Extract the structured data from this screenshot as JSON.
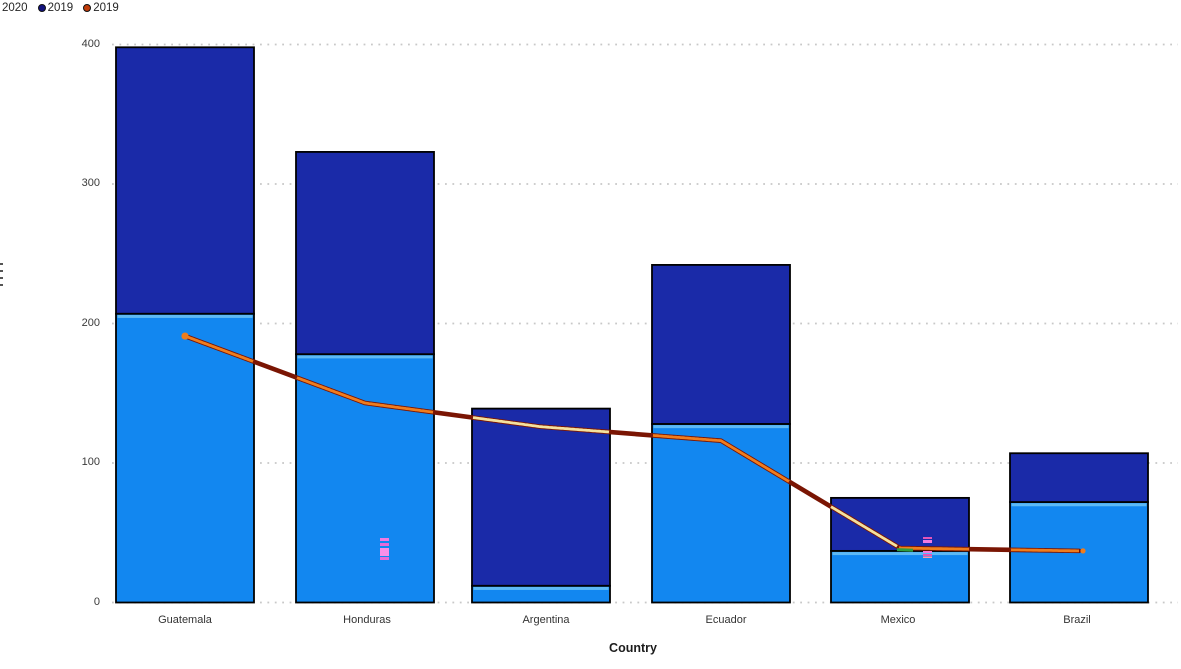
{
  "legend": {
    "items": [
      {
        "label": "2020",
        "swatch": null
      },
      {
        "label": "2019",
        "swatch": "#12127e"
      },
      {
        "label": "2019",
        "swatch": "#c03c0a"
      }
    ]
  },
  "chart_data": {
    "type": "combo-stacked-column-line",
    "categories": [
      "Guatemala",
      "Honduras",
      "Argentina",
      "Ecuador",
      "Mexico",
      "Brazil"
    ],
    "series": [
      {
        "name": "2020",
        "type": "column",
        "stack_position": "bottom",
        "color": "#1287f0",
        "values": [
          207,
          178,
          12,
          128,
          37,
          72
        ]
      },
      {
        "name": "2019",
        "type": "column",
        "stack_position": "top",
        "color": "#1a2aa8",
        "values": [
          191,
          145,
          127,
          114,
          38,
          35
        ]
      },
      {
        "name": "2019",
        "type": "line",
        "color": "#ee7d1e",
        "values": [
          191,
          143,
          126,
          116,
          39,
          37
        ]
      }
    ],
    "stack_totals": [
      398,
      323,
      139,
      242,
      75,
      107
    ],
    "xlabel": "Country",
    "ytick_labels": [
      "0",
      "100",
      "200",
      "300",
      "400"
    ],
    "yticks": [
      0,
      100,
      200,
      300,
      400
    ],
    "ylim": [
      0,
      400
    ],
    "grid": "dotted-horizontal",
    "legend_position": "top-left"
  },
  "colors": {
    "column_bottom": "#1287f0",
    "column_bottom_top_strip": "#5db9f5",
    "column_top": "#1a2aa8",
    "column_border": "#000000",
    "line_main": "#ee7d1e",
    "line_over_white": "#7a1503",
    "line_over_navy": "#f3e19e",
    "line_artifact_green": "#2e9e3f",
    "gridline": "#c8c8c8",
    "tick_text": "#3a3a3a",
    "background": "#ffffff",
    "artifact_pink": "#f07ae0"
  }
}
